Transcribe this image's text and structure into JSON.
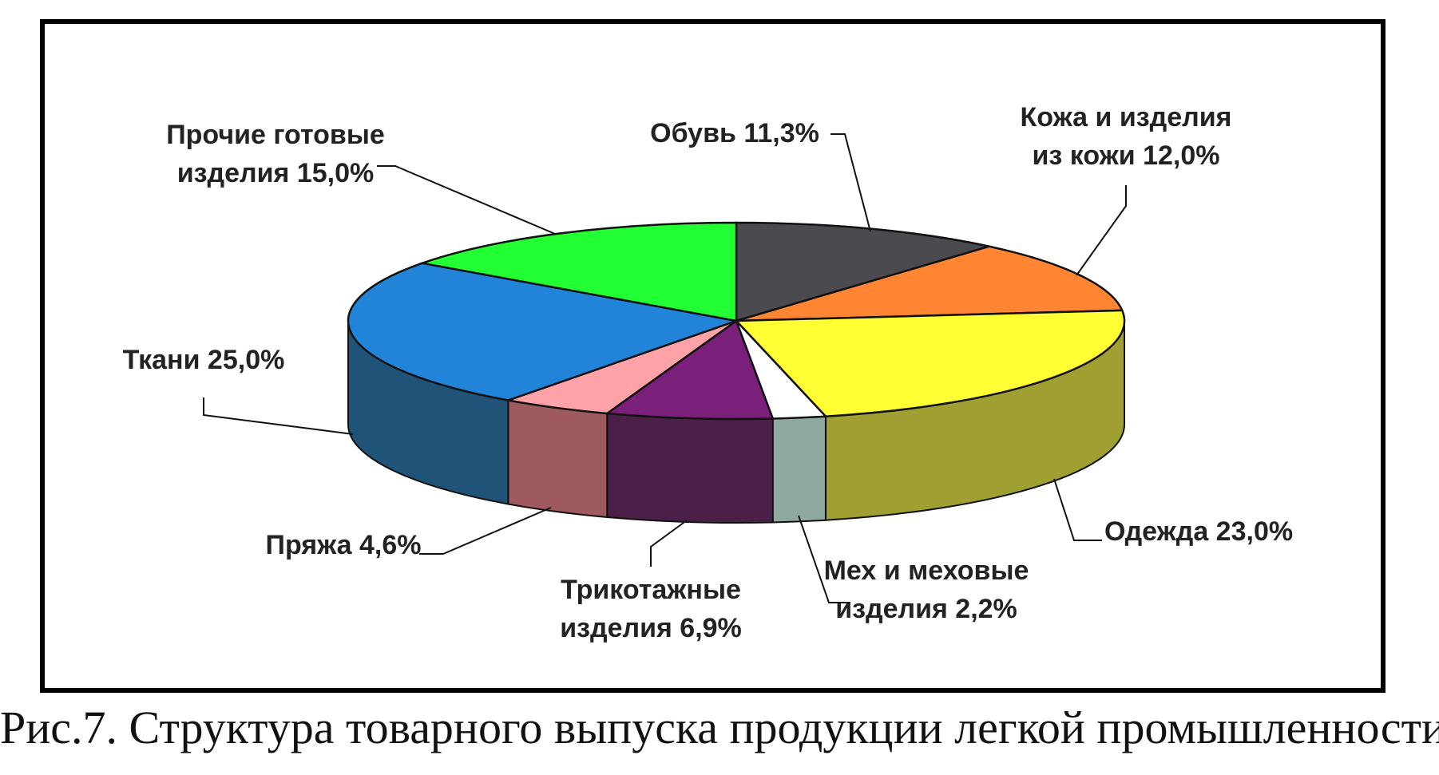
{
  "caption": "Рис.7. Структура товарного выпуска продукции легкой промышленности",
  "chart_data": {
    "type": "pie",
    "title": "",
    "unit": "%",
    "slices": [
      {
        "name": "Обувь",
        "value": 11.3,
        "label_lines": [
          "Обувь 11,3%"
        ],
        "top_color": "#4b4a4f",
        "side_color": "#353437"
      },
      {
        "name": "Кожа и изделия из кожи",
        "value": 12.0,
        "label_lines": [
          "Кожа и изделия",
          "из кожи 12,0%"
        ],
        "top_color": "#ff8533",
        "side_color": "#c25f1f"
      },
      {
        "name": "Одежда",
        "value": 23.0,
        "label_lines": [
          "Одежда 23,0%"
        ],
        "top_color": "#ffff33",
        "side_color": "#a09f32"
      },
      {
        "name": "Мех и меховые изделия",
        "value": 2.2,
        "label_lines": [
          "Мех и меховые",
          "изделия 2,2%"
        ],
        "top_color": "#ffffff",
        "side_color": "#8fa8a0"
      },
      {
        "name": "Трикотажные изделия",
        "value": 6.9,
        "label_lines": [
          "Трикотажные",
          "изделия 6,9%"
        ],
        "top_color": "#7a1f7a",
        "side_color": "#4a2048"
      },
      {
        "name": "Пряжа",
        "value": 4.6,
        "label_lines": [
          "Пряжа 4,6%"
        ],
        "top_color": "#ffa3a8",
        "side_color": "#9e5a5e"
      },
      {
        "name": "Ткани",
        "value": 25.0,
        "label_lines": [
          "Ткани 25,0%"
        ],
        "top_color": "#2284d8",
        "side_color": "#1f5478"
      },
      {
        "name": "Прочие готовые изделия",
        "value": 15.0,
        "label_lines": [
          "Прочие готовые",
          "изделия 15,0%"
        ],
        "top_color": "#22ff33",
        "side_color": "#18b024"
      }
    ]
  }
}
